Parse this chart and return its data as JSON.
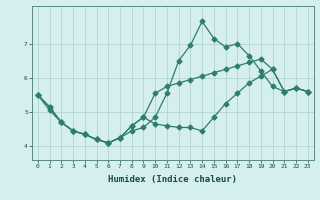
{
  "xlabel": "Humidex (Indice chaleur)",
  "background_color": "#d4efee",
  "grid_color": "#b8d8d8",
  "line_color": "#2e7d6e",
  "hours": [
    0,
    1,
    2,
    3,
    4,
    5,
    6,
    7,
    8,
    9,
    10,
    11,
    12,
    13,
    14,
    15,
    16,
    17,
    18,
    19,
    20,
    21,
    22,
    23
  ],
  "line1": [
    5.5,
    5.15,
    4.7,
    4.45,
    4.35,
    4.2,
    4.1,
    4.25,
    4.45,
    4.55,
    4.85,
    5.55,
    6.5,
    6.95,
    7.65,
    7.15,
    6.9,
    7.0,
    6.65,
    6.2,
    5.75,
    5.6,
    5.7,
    5.6
  ],
  "line2": [
    5.5,
    5.15,
    4.7,
    4.45,
    4.35,
    4.2,
    4.1,
    4.25,
    4.6,
    4.85,
    4.65,
    4.6,
    4.55,
    4.55,
    4.45,
    4.85,
    5.25,
    5.55,
    5.85,
    6.05,
    6.25,
    5.6,
    5.7,
    5.6
  ],
  "line3": [
    5.5,
    5.05,
    4.7,
    4.45,
    4.35,
    4.2,
    4.1,
    4.25,
    4.6,
    4.85,
    5.55,
    5.75,
    5.85,
    5.95,
    6.05,
    6.15,
    6.25,
    6.35,
    6.45,
    6.55,
    6.25,
    5.6,
    5.7,
    5.6
  ],
  "ylim": [
    3.6,
    8.1
  ],
  "yticks": [
    4,
    5,
    6,
    7
  ],
  "xticks": [
    0,
    1,
    2,
    3,
    4,
    5,
    6,
    7,
    8,
    9,
    10,
    11,
    12,
    13,
    14,
    15,
    16,
    17,
    18,
    19,
    20,
    21,
    22,
    23
  ]
}
